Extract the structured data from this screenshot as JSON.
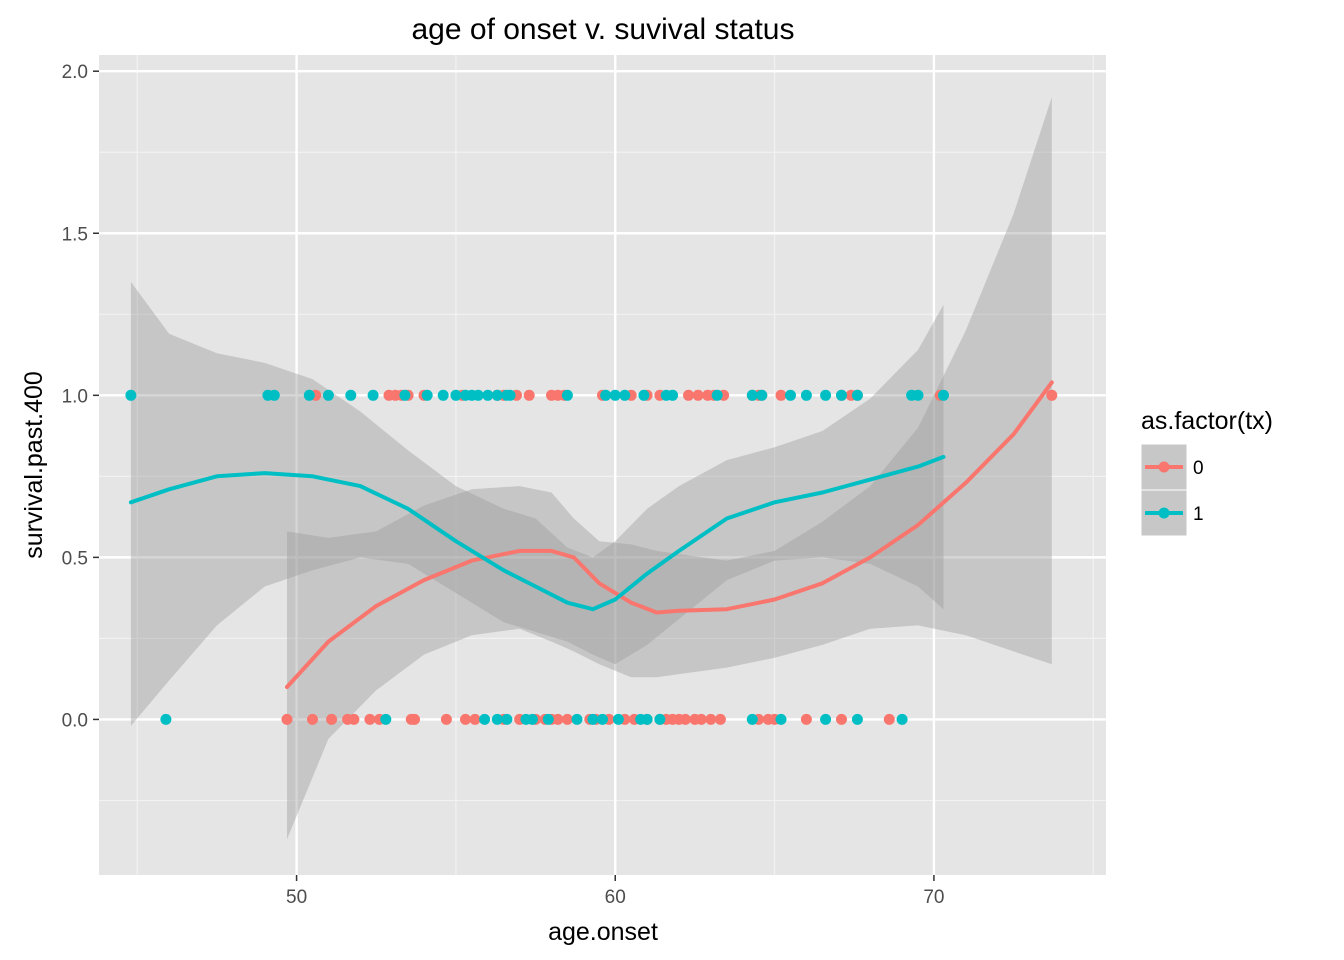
{
  "chart_data": {
    "type": "scatter",
    "title": "age of onset v. suvival status",
    "xlabel": "age.onset",
    "ylabel": "survival.past.400",
    "xlim": [
      43.8,
      75.4
    ],
    "ylim": [
      -0.48,
      2.05
    ],
    "x_ticks": [
      50,
      60,
      70
    ],
    "x_tick_labels": [
      "50",
      "60",
      "70"
    ],
    "x_minor_ticks": [
      45,
      55,
      65,
      75
    ],
    "y_ticks": [
      0.0,
      0.5,
      1.0,
      1.5,
      2.0
    ],
    "y_tick_labels": [
      "0.0",
      "0.5",
      "1.0",
      "1.5",
      "2.0"
    ],
    "y_minor_ticks": [
      -0.25,
      0.25,
      0.75,
      1.25,
      1.75
    ],
    "grid": true,
    "background": "#e5e5e5",
    "legend": {
      "title": "as.factor(tx)",
      "position": "right",
      "entries": [
        "0",
        "1"
      ]
    },
    "series": [
      {
        "name": "0",
        "color": "#f8766d",
        "points_y1_x": [
          50.6,
          52.9,
          53.1,
          53.3,
          53.5,
          54.0,
          55.2,
          56.3,
          56.5,
          56.9,
          57.3,
          58.0,
          58.2,
          58.4,
          59.6,
          60.5,
          61.0,
          61.4,
          62.3,
          62.6,
          62.9,
          63.1,
          63.4,
          64.3,
          64.5,
          64.6,
          65.2,
          67.1,
          67.4,
          67.6,
          70.2,
          73.7
        ],
        "points_y0_x": [
          49.7,
          50.5,
          51.1,
          51.6,
          51.8,
          52.3,
          52.6,
          53.6,
          53.7,
          54.7,
          55.3,
          55.6,
          56.5,
          57.0,
          57.5,
          57.8,
          58.0,
          58.2,
          58.5,
          59.2,
          59.4,
          59.8,
          60.3,
          60.6,
          61.0,
          61.4,
          61.6,
          61.8,
          62.0,
          62.2,
          62.5,
          62.7,
          63.0,
          63.3,
          64.5,
          64.8,
          65.0,
          66.0,
          67.1,
          68.6
        ],
        "smooth": {
          "x": [
            49.7,
            51.0,
            52.5,
            54.0,
            55.5,
            57.0,
            58.0,
            58.7,
            59.5,
            60.5,
            61.3,
            62.0,
            63.5,
            65.0,
            66.5,
            68.0,
            69.5,
            71.0,
            72.5,
            73.7
          ],
          "y": [
            0.1,
            0.24,
            0.35,
            0.43,
            0.49,
            0.52,
            0.52,
            0.5,
            0.42,
            0.36,
            0.33,
            0.335,
            0.34,
            0.37,
            0.42,
            0.5,
            0.6,
            0.73,
            0.88,
            1.04
          ],
          "lower": [
            -0.37,
            -0.06,
            0.09,
            0.2,
            0.26,
            0.28,
            0.24,
            0.21,
            0.17,
            0.13,
            0.13,
            0.14,
            0.16,
            0.19,
            0.23,
            0.28,
            0.29,
            0.26,
            0.21,
            0.17
          ],
          "upper": [
            0.58,
            0.56,
            0.58,
            0.66,
            0.71,
            0.72,
            0.7,
            0.62,
            0.55,
            0.54,
            0.52,
            0.51,
            0.49,
            0.52,
            0.61,
            0.72,
            0.9,
            1.2,
            1.56,
            1.92
          ]
        }
      },
      {
        "name": "1",
        "color": "#00bfc4",
        "points_y1_x": [
          44.8,
          49.1,
          49.3,
          50.4,
          51.0,
          51.7,
          52.4,
          53.4,
          54.1,
          54.6,
          55.0,
          55.3,
          55.5,
          55.7,
          56.0,
          56.3,
          56.6,
          56.7,
          58.5,
          59.7,
          60.0,
          60.3,
          60.9,
          61.6,
          61.8,
          63.2,
          64.3,
          64.6,
          65.5,
          66.0,
          66.6,
          67.1,
          67.6,
          69.3,
          69.5,
          70.3
        ],
        "points_y0_x": [
          45.9,
          52.8,
          55.9,
          56.3,
          56.6,
          57.2,
          57.4,
          57.9,
          58.8,
          59.3,
          59.6,
          60.1,
          60.8,
          61.0,
          61.4,
          64.3,
          65.2,
          66.6,
          67.6,
          69.0
        ],
        "smooth": {
          "x": [
            44.8,
            46.0,
            47.5,
            49.0,
            50.5,
            52.0,
            53.5,
            55.0,
            56.5,
            57.5,
            58.5,
            59.3,
            60.0,
            61.0,
            62.0,
            63.5,
            65.0,
            66.5,
            68.0,
            69.5,
            70.3
          ],
          "y": [
            0.67,
            0.71,
            0.75,
            0.76,
            0.75,
            0.72,
            0.65,
            0.55,
            0.46,
            0.41,
            0.36,
            0.34,
            0.37,
            0.45,
            0.52,
            0.62,
            0.67,
            0.7,
            0.74,
            0.78,
            0.81
          ],
          "lower": [
            -0.02,
            0.12,
            0.29,
            0.41,
            0.46,
            0.5,
            0.48,
            0.39,
            0.3,
            0.27,
            0.24,
            0.2,
            0.17,
            0.23,
            0.31,
            0.43,
            0.49,
            0.5,
            0.48,
            0.41,
            0.34
          ],
          "upper": [
            1.35,
            1.19,
            1.13,
            1.1,
            1.05,
            0.95,
            0.83,
            0.72,
            0.65,
            0.62,
            0.53,
            0.5,
            0.55,
            0.65,
            0.72,
            0.8,
            0.84,
            0.89,
            0.99,
            1.14,
            1.28
          ]
        }
      }
    ]
  }
}
